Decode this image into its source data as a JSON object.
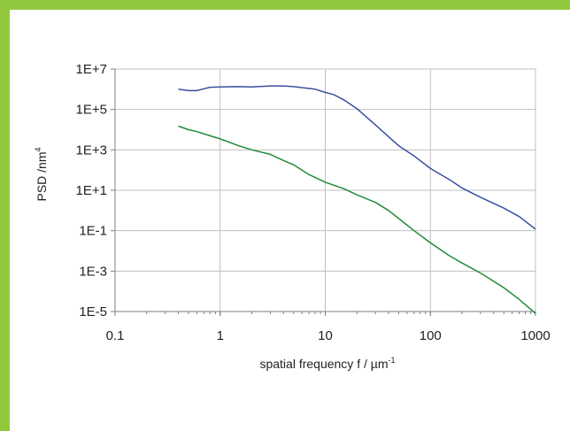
{
  "colors": {
    "frame": "#92c83e",
    "grid": "#bfbfbf",
    "axis": "#7f7f7f"
  },
  "chart_data": {
    "type": "line",
    "title": "",
    "xlabel": {
      "base": "spatial frequency f / µm",
      "sup": "-1"
    },
    "ylabel": {
      "base": "PSD /nm",
      "sup": "4"
    },
    "xscale": "log",
    "yscale": "log",
    "xlim": [
      0.1,
      1000
    ],
    "ylim": [
      1e-05,
      10000000
    ],
    "grid": true,
    "legend": "none",
    "x_tick_labels": [
      "0.1",
      "1",
      "10",
      "100",
      "1000"
    ],
    "y_tick_labels": [
      "1E-5",
      "1E-3",
      "1E-1",
      "1E+1",
      "1E+3",
      "1E+5",
      "1E+7"
    ],
    "series": [
      {
        "color": "#3a4fa0",
        "x": [
          0.4,
          0.5,
          0.6,
          0.7,
          0.8,
          1,
          1.5,
          2,
          3,
          4,
          5,
          6,
          8,
          10,
          12,
          15,
          20,
          30,
          40,
          50,
          70,
          100,
          150,
          200,
          300,
          500,
          700,
          1000
        ],
        "y": [
          1000000,
          850000,
          850000,
          1050000,
          1250000,
          1300000,
          1350000,
          1300000,
          1450000,
          1450000,
          1350000,
          1200000,
          1000000,
          700000,
          550000,
          300000,
          110000,
          17000,
          4500,
          1600,
          500,
          120,
          35,
          13,
          4.5,
          1.3,
          0.5,
          0.12
        ]
      },
      {
        "color": "#228b3a",
        "x": [
          0.4,
          0.5,
          0.6,
          0.8,
          1,
          1.5,
          2,
          3,
          4,
          5,
          7,
          10,
          15,
          20,
          30,
          40,
          50,
          70,
          100,
          150,
          200,
          300,
          500,
          700,
          1000
        ],
        "y": [
          15000,
          10000,
          8000,
          5000,
          3500,
          1600,
          1000,
          600,
          300,
          180,
          60,
          25,
          12,
          6,
          2.5,
          1,
          0.4,
          0.1,
          0.025,
          0.006,
          0.0025,
          0.0008,
          0.00015,
          4e-05,
          8e-06
        ]
      }
    ]
  }
}
